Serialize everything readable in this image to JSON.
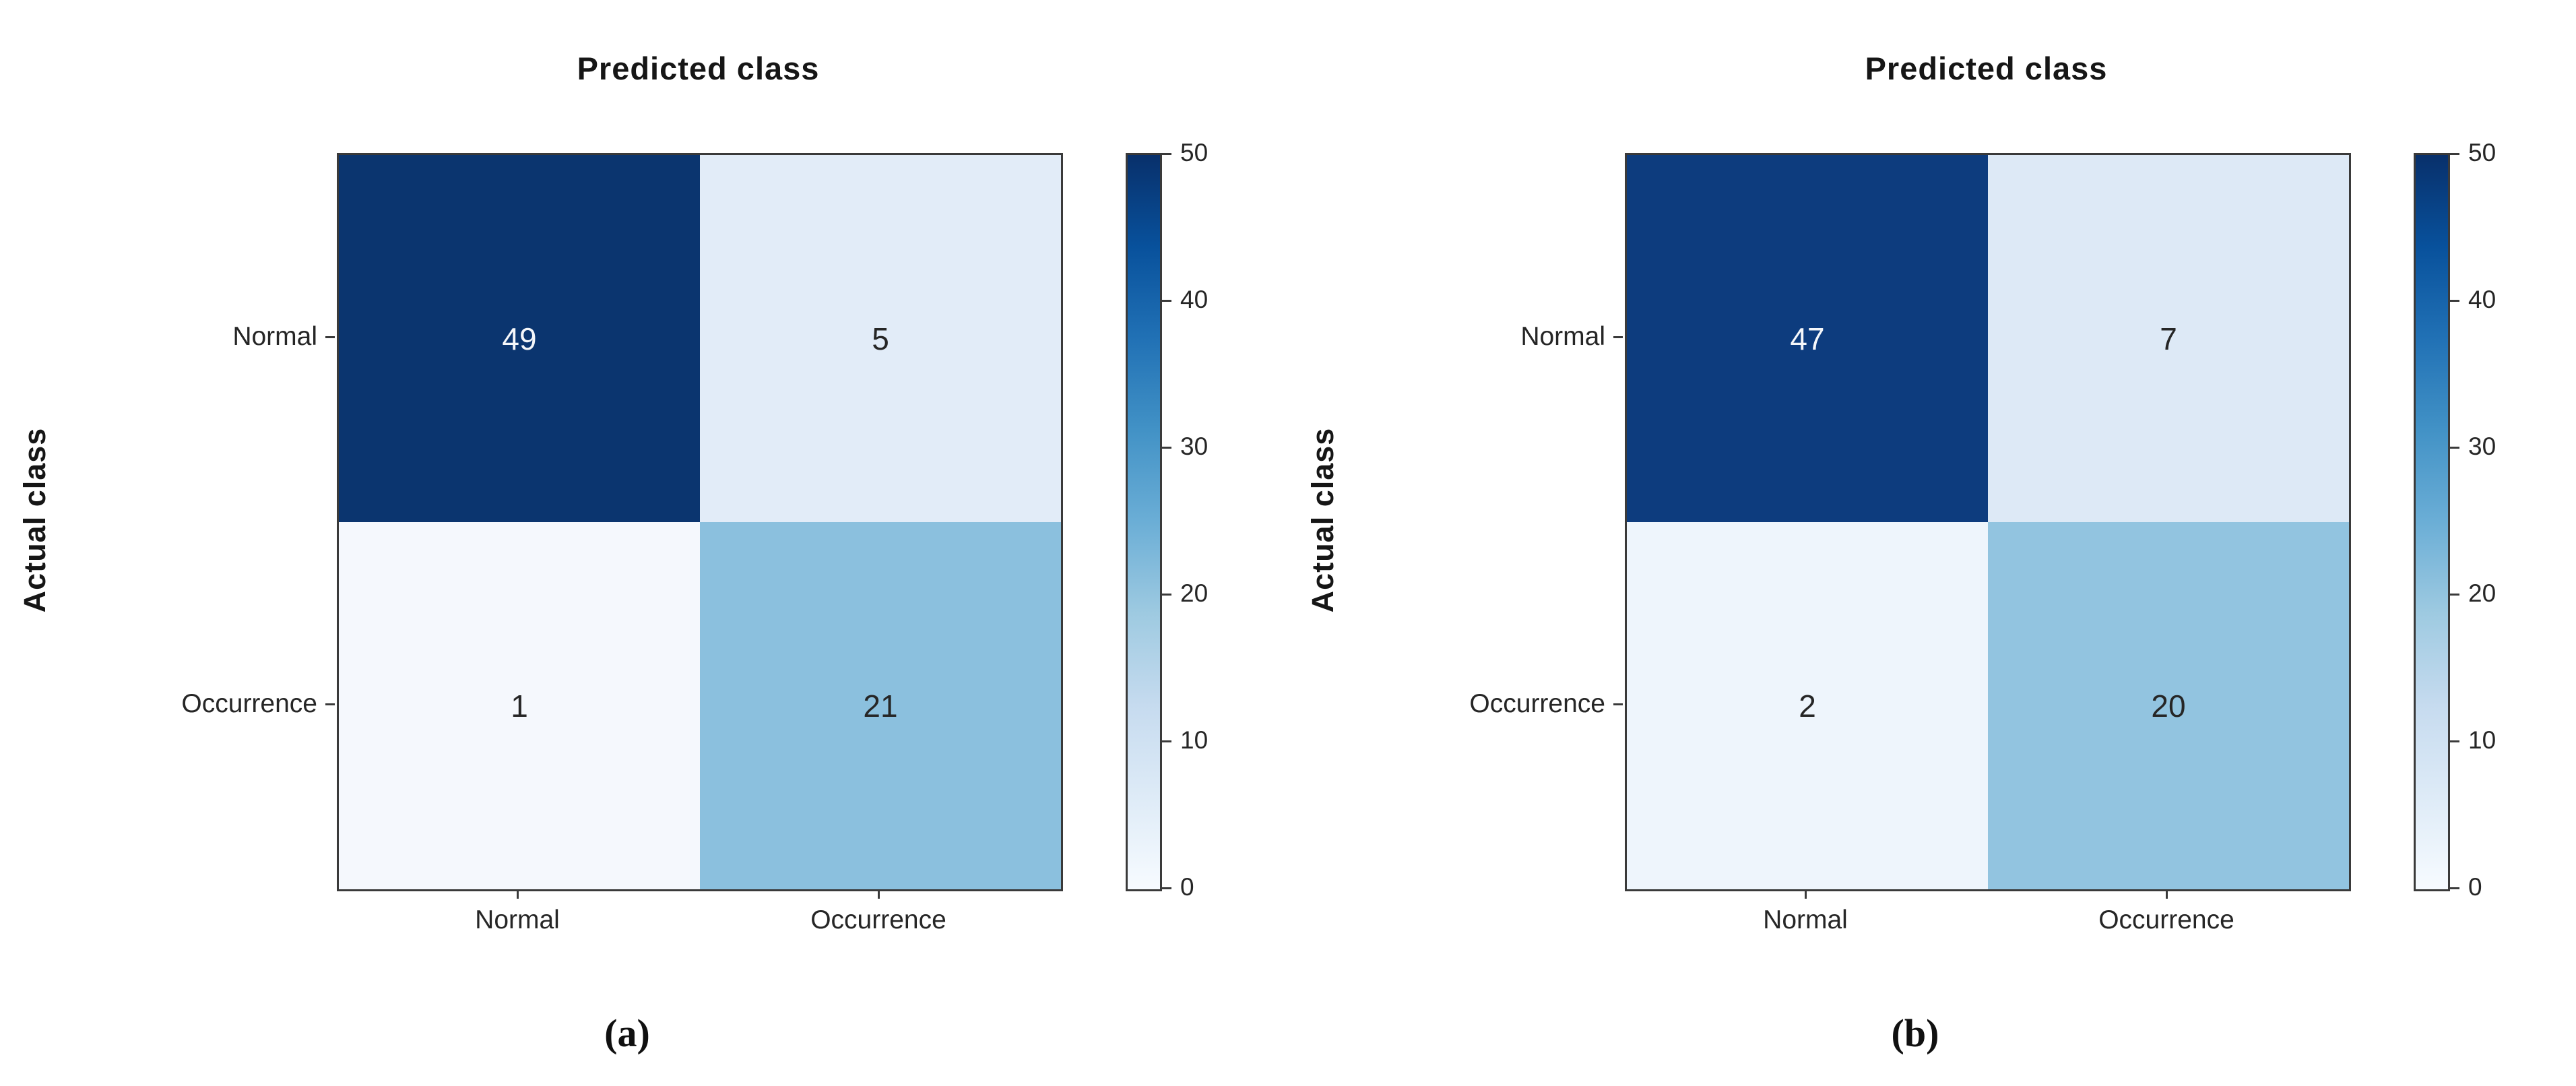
{
  "figure": {
    "background": "#ffffff",
    "colormap": "Blues",
    "axis_color": "#3a3a3a",
    "title_color": "#161616",
    "tick_label_color": "#262626"
  },
  "panels": [
    {
      "caption": "(a)",
      "title": "Predicted class",
      "ylabel": "Actual class",
      "row_labels": [
        "Normal",
        "Occurrence"
      ],
      "col_labels": [
        "Normal",
        "Occurrence"
      ],
      "cells": [
        {
          "value": "49",
          "bg": "#0b356f",
          "fg": "#f5f7fa"
        },
        {
          "value": "5",
          "bg": "#e2ecf8",
          "fg": "#262626"
        },
        {
          "value": "1",
          "bg": "#f5f8fd",
          "fg": "#262626"
        },
        {
          "value": "21",
          "bg": "#8bc0de",
          "fg": "#262626"
        }
      ],
      "colorbar_ticks": [
        "50",
        "40",
        "30",
        "20",
        "10",
        "0"
      ]
    },
    {
      "caption": "(b)",
      "title": "Predicted class",
      "ylabel": "Actual class",
      "row_labels": [
        "Normal",
        "Occurrence"
      ],
      "col_labels": [
        "Normal",
        "Occurrence"
      ],
      "cells": [
        {
          "value": "47",
          "bg": "#0d3c7e",
          "fg": "#f5f7fa"
        },
        {
          "value": "7",
          "bg": "#dde9f6",
          "fg": "#262626"
        },
        {
          "value": "2",
          "bg": "#eef5fc",
          "fg": "#262626"
        },
        {
          "value": "20",
          "bg": "#92c4e0",
          "fg": "#262626"
        }
      ],
      "colorbar_ticks": [
        "50",
        "40",
        "30",
        "20",
        "10",
        "0"
      ]
    }
  ],
  "chart_data": [
    {
      "type": "heatmap",
      "subplot_label": "(a)",
      "title": "Predicted class",
      "xlabel": "Predicted class",
      "ylabel": "Actual class",
      "x_categories": [
        "Normal",
        "Occurrence"
      ],
      "y_categories": [
        "Normal",
        "Occurrence"
      ],
      "values": [
        [
          49,
          5
        ],
        [
          1,
          21
        ]
      ],
      "colormap": "Blues",
      "colorbar_range": [
        0,
        50
      ],
      "colorbar_ticks": [
        0,
        10,
        20,
        30,
        40,
        50
      ],
      "legend_position": "right-colorbar",
      "grid": false
    },
    {
      "type": "heatmap",
      "subplot_label": "(b)",
      "title": "Predicted class",
      "xlabel": "Predicted class",
      "ylabel": "Actual class",
      "x_categories": [
        "Normal",
        "Occurrence"
      ],
      "y_categories": [
        "Normal",
        "Occurrence"
      ],
      "values": [
        [
          47,
          7
        ],
        [
          2,
          20
        ]
      ],
      "colormap": "Blues",
      "colorbar_range": [
        0,
        50
      ],
      "colorbar_ticks": [
        0,
        10,
        20,
        30,
        40,
        50
      ],
      "legend_position": "right-colorbar",
      "grid": false
    }
  ]
}
